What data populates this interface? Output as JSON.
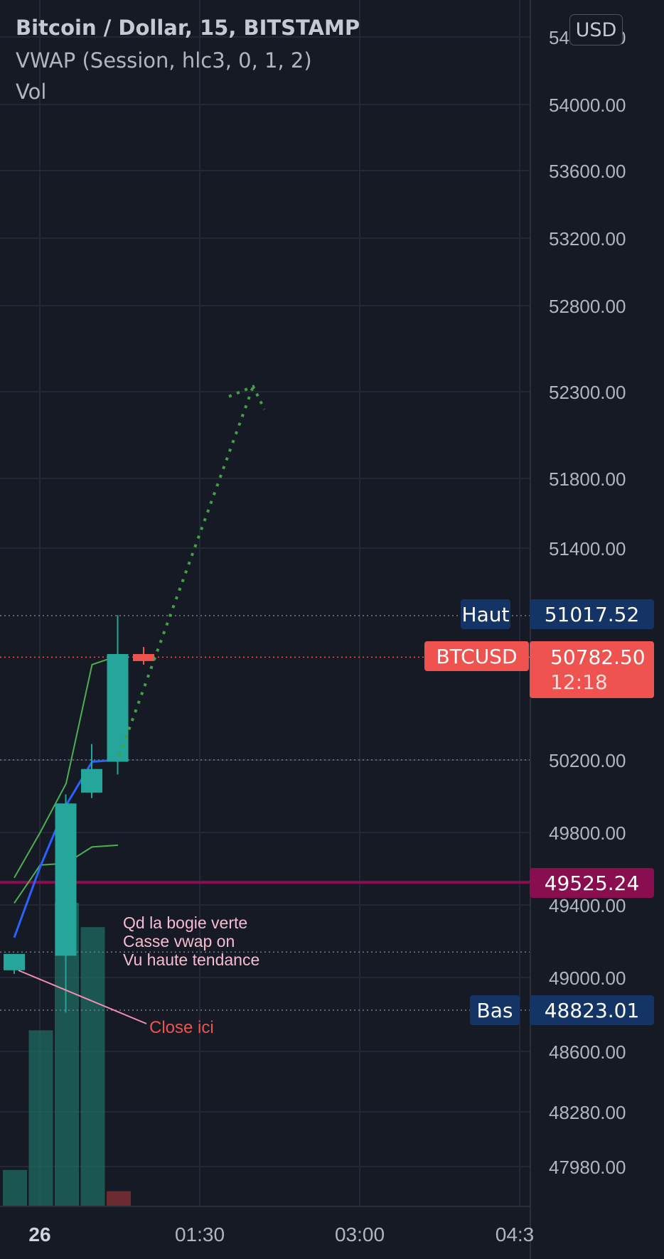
{
  "header": {
    "title": "Bitcoin / Dollar, 15, BITSTAMP",
    "vwap": "VWAP (Session, hlc3, 0, 1, 2)",
    "vol": "Vol",
    "currency": "USD"
  },
  "chart_data": {
    "type": "candlestick",
    "symbol": "BTCUSD",
    "interval": "15",
    "price_axis": {
      "ticks": [
        54400,
        54000,
        53600,
        53200,
        52800,
        52300,
        51800,
        51400,
        50200,
        49800,
        49400,
        49000,
        48600,
        48280,
        47980
      ],
      "tick_labels": [
        "54400.00",
        "54000.00",
        "53600.00",
        "53200.00",
        "52800.00",
        "52300.00",
        "51800.00",
        "51400.00",
        "50200.00",
        "49800.00",
        "49400.00",
        "49000.00",
        "48600.00",
        "48280.00",
        "47980.00"
      ]
    },
    "time_axis": {
      "labels": [
        "26",
        "01:30",
        "03:00",
        "04:3"
      ],
      "bold": [
        "26"
      ]
    },
    "candles": [
      {
        "open": 49040,
        "high": 49120,
        "low": 49020,
        "close": 49130
      },
      {
        "open": 49120,
        "high": 50010,
        "low": 48810,
        "close": 49960
      },
      {
        "open": 50020,
        "high": 50290,
        "low": 49990,
        "close": 50150
      },
      {
        "open": 50190,
        "high": 51020,
        "low": 50120,
        "close": 50800
      },
      {
        "open": 50800,
        "high": 50840,
        "low": 50740,
        "close": 50760
      }
    ],
    "volume": [
      0.12,
      0.58,
      1.0,
      0.92,
      0.05
    ],
    "vwap": [
      49220,
      49610,
      49950,
      50190,
      50200
    ],
    "vwap_upper": [
      49550,
      49800,
      50070,
      50740,
      50790
    ],
    "vwap_lower": [
      49410,
      49620,
      49630,
      49720,
      49730
    ],
    "markers": {
      "high": {
        "label": "Haut",
        "value": "51017.52"
      },
      "last": {
        "label": "BTCUSD",
        "value": "50782.50",
        "countdown": "12:18"
      },
      "level": {
        "value": "49525.24"
      },
      "low": {
        "label": "Bas",
        "value": "48823.01"
      }
    },
    "annotations": {
      "note": [
        "Qd la bogie verte",
        "Casse vwap on",
        "Vu haute tendance"
      ],
      "close": "Close ici",
      "arrow_target": 52330
    },
    "colors": {
      "background": "#161a25",
      "up": "#26a69a",
      "down": "#ef5350",
      "vwap": "#2962ff",
      "bands": "#4caf50",
      "level": "#880e4f",
      "marker": "#133465"
    }
  }
}
